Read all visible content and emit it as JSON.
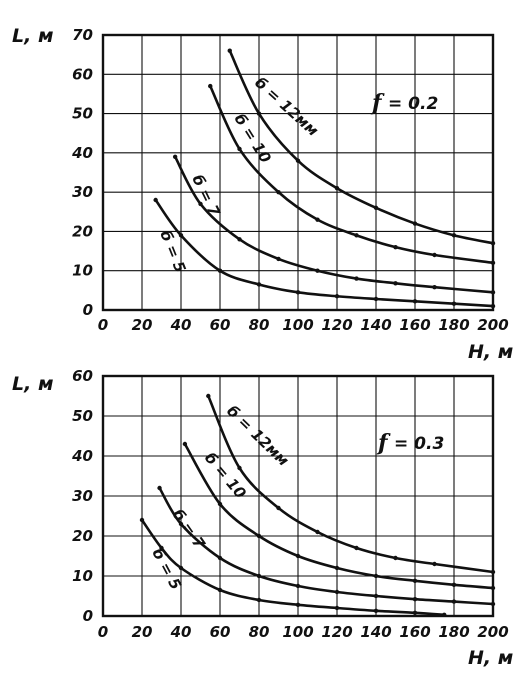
{
  "chart_data": [
    {
      "type": "line",
      "panel": "top",
      "xlabel": "H, м",
      "ylabel": "L, м",
      "xlim": [
        0,
        200
      ],
      "ylim": [
        0,
        70
      ],
      "xticks": [
        "0",
        "20",
        "40",
        "60",
        "80",
        "100",
        "120",
        "140",
        "160",
        "180",
        "200"
      ],
      "yticks": [
        "0",
        "10",
        "20",
        "30",
        "40",
        "50",
        "60",
        "70"
      ],
      "grid": true,
      "annotation_prefix": "f",
      "annotation_value": "= 0.2",
      "series": [
        {
          "name": "б = 5",
          "x": [
            27,
            40,
            60,
            80,
            100,
            120,
            140,
            160,
            180,
            200
          ],
          "y": [
            28,
            19,
            10,
            6.5,
            4.5,
            3.5,
            2.8,
            2.2,
            1.6,
            1.0
          ]
        },
        {
          "name": "б = 7",
          "x": [
            37,
            50,
            70,
            90,
            110,
            130,
            150,
            170,
            200
          ],
          "y": [
            39,
            27,
            18,
            13,
            10,
            8,
            6.8,
            5.8,
            4.5
          ]
        },
        {
          "name": "б = 10",
          "x": [
            55,
            70,
            90,
            110,
            130,
            150,
            170,
            200
          ],
          "y": [
            57,
            41,
            30,
            23,
            19,
            16,
            14,
            12
          ]
        },
        {
          "name": "б = 12мм",
          "x": [
            65,
            80,
            100,
            120,
            140,
            160,
            180,
            200
          ],
          "y": [
            66,
            50,
            38,
            31,
            26,
            22,
            19,
            17
          ]
        }
      ]
    },
    {
      "type": "line",
      "panel": "bottom",
      "xlabel": "H, м",
      "ylabel": "L, м",
      "xlim": [
        0,
        200
      ],
      "ylim": [
        0,
        60
      ],
      "xticks": [
        "0",
        "20",
        "40",
        "60",
        "80",
        "100",
        "120",
        "140",
        "160",
        "180",
        "200"
      ],
      "yticks": [
        "0",
        "10",
        "20",
        "30",
        "40",
        "50",
        "60"
      ],
      "grid": true,
      "annotation_prefix": "f",
      "annotation_value": "= 0.3",
      "series": [
        {
          "name": "б = 5",
          "x": [
            20,
            30,
            40,
            60,
            80,
            100,
            120,
            140,
            160,
            175
          ],
          "y": [
            24,
            17,
            12,
            6.5,
            4,
            2.8,
            2,
            1.3,
            0.8,
            0.3
          ]
        },
        {
          "name": "б = 7",
          "x": [
            29,
            40,
            60,
            80,
            100,
            120,
            140,
            160,
            180,
            200
          ],
          "y": [
            32,
            23,
            14.5,
            10,
            7.5,
            6,
            5,
            4.2,
            3.6,
            3
          ]
        },
        {
          "name": "б = 10",
          "x": [
            42,
            60,
            80,
            100,
            120,
            140,
            160,
            180,
            200
          ],
          "y": [
            43,
            28,
            20,
            15,
            12,
            10,
            8.8,
            7.8,
            7
          ]
        },
        {
          "name": "б = 12мм",
          "x": [
            54,
            70,
            90,
            110,
            130,
            150,
            170,
            200
          ],
          "y": [
            55,
            37,
            27,
            21,
            17,
            14.5,
            13,
            11
          ]
        }
      ]
    }
  ]
}
